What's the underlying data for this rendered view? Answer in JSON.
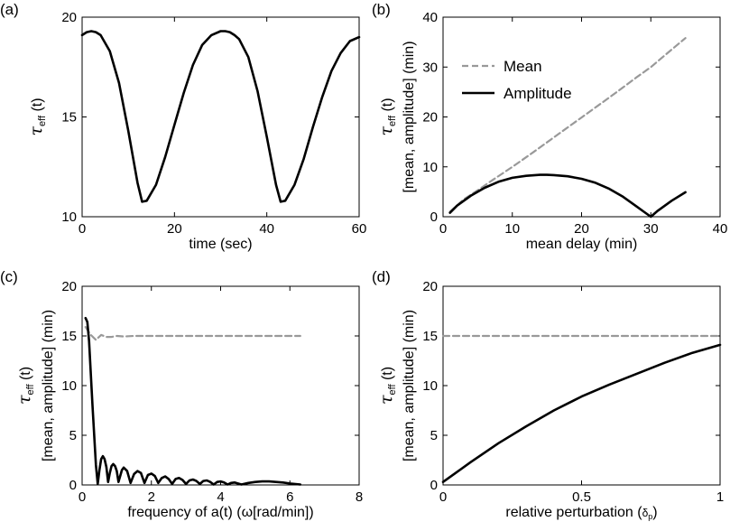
{
  "chart_data": [
    {
      "panel_label": "(a)",
      "type": "line",
      "xlabel": "time (sec)",
      "ylabel_parts": [
        "τ",
        "eff",
        " (t)"
      ],
      "xlim": [
        0,
        60
      ],
      "ylim": [
        10,
        20
      ],
      "xticks": [
        0,
        20,
        40,
        60
      ],
      "yticks": [
        10,
        15,
        20
      ],
      "series": [
        {
          "color": "#000000",
          "dash": "solid",
          "x": [
            0,
            1,
            2,
            3,
            4,
            6,
            8,
            10,
            12,
            13,
            14,
            16,
            18,
            20,
            22,
            24,
            26,
            28,
            30,
            31,
            32,
            33,
            34,
            36,
            38,
            40,
            42,
            43,
            44,
            46,
            48,
            50,
            52,
            54,
            56,
            58,
            60
          ],
          "y": [
            19.1,
            19.25,
            19.3,
            19.25,
            19.1,
            18.3,
            16.7,
            14.3,
            11.7,
            10.75,
            10.8,
            11.6,
            13.0,
            14.6,
            16.2,
            17.6,
            18.6,
            19.1,
            19.3,
            19.3,
            19.25,
            19.1,
            18.9,
            18.0,
            16.3,
            14.0,
            11.6,
            10.75,
            10.8,
            11.6,
            12.9,
            14.5,
            16.0,
            17.3,
            18.2,
            18.8,
            19.0
          ]
        }
      ]
    },
    {
      "panel_label": "(b)",
      "type": "line",
      "xlabel": "mean delay (min)",
      "ylabel_parts": [
        "τ",
        "eff",
        " (t)"
      ],
      "ylabel2": "[mean, amplitude] (min)",
      "xlim": [
        0,
        40
      ],
      "ylim": [
        0,
        40
      ],
      "xticks": [
        0,
        10,
        20,
        30,
        40
      ],
      "yticks": [
        0,
        10,
        20,
        30,
        40
      ],
      "legend_position": "upper-left",
      "series": [
        {
          "name": "Mean",
          "color": "#999999",
          "dash": "dashed",
          "x": [
            1,
            3,
            5,
            7,
            10,
            13,
            15,
            18,
            20,
            23,
            25,
            28,
            30,
            33,
            35
          ],
          "y": [
            1,
            3.5,
            5.3,
            7.2,
            10,
            12.9,
            14.9,
            17.9,
            19.9,
            22.9,
            24.9,
            28,
            30,
            33.5,
            35.8
          ]
        },
        {
          "name": "Amplitude",
          "color": "#000000",
          "dash": "solid",
          "x": [
            1,
            2,
            4,
            6,
            8,
            10,
            12,
            14,
            15,
            16,
            18,
            20,
            22,
            24,
            26,
            28,
            29,
            30,
            31,
            33,
            35
          ],
          "y": [
            0.8,
            2.2,
            4.2,
            5.8,
            7.0,
            7.8,
            8.2,
            8.4,
            8.4,
            8.35,
            8.1,
            7.6,
            6.8,
            5.6,
            4.0,
            2.0,
            1.0,
            0,
            1.2,
            3.2,
            4.9
          ]
        }
      ]
    },
    {
      "panel_label": "(c)",
      "type": "line",
      "xlabel": "frequency of a(t) (ω[rad/min])",
      "ylabel_parts": [
        "τ",
        "eff",
        " (t)"
      ],
      "ylabel2": "[mean, amplitude] (min)",
      "xlim": [
        0,
        8
      ],
      "ylim": [
        0,
        20
      ],
      "xticks": [
        0,
        2,
        4,
        6,
        8
      ],
      "yticks": [
        0,
        5,
        10,
        15,
        20
      ],
      "series": [
        {
          "name": "Mean",
          "color": "#999999",
          "dash": "dashed",
          "x": [
            0.1,
            0.25,
            0.4,
            0.55,
            0.7,
            0.85,
            1.0,
            1.2,
            1.5,
            2,
            3,
            4,
            5,
            6,
            6.3
          ],
          "y": [
            15.9,
            15.1,
            14.6,
            15.1,
            14.9,
            14.9,
            15.0,
            14.95,
            15.0,
            15.0,
            15.0,
            15.0,
            15.0,
            15.0,
            15.0
          ]
        },
        {
          "name": "Amplitude",
          "color": "#000000",
          "dash": "solid",
          "x": [
            0.1,
            0.15,
            0.2,
            0.3,
            0.4,
            0.45,
            0.5,
            0.55,
            0.6,
            0.65,
            0.7,
            0.75,
            0.8,
            0.85,
            0.9,
            0.95,
            1.0,
            1.05,
            1.1,
            1.15,
            1.2,
            1.3,
            1.4,
            1.5,
            1.6,
            1.7,
            1.8,
            1.9,
            2.0,
            2.1,
            2.2,
            2.3,
            2.4,
            2.5,
            2.6,
            2.7,
            2.8,
            2.9,
            3.0,
            3.1,
            3.2,
            3.3,
            3.4,
            3.5,
            3.6,
            3.7,
            3.8,
            3.9,
            4.0,
            4.1,
            4.2,
            4.3,
            4.4,
            4.5,
            4.6,
            4.8,
            5.0,
            5.2,
            5.4,
            5.6,
            5.8,
            6.0,
            6.3
          ],
          "y": [
            16.8,
            16.4,
            14.5,
            8.0,
            2.0,
            0.1,
            1.5,
            2.6,
            2.9,
            2.6,
            1.8,
            0.3,
            1.2,
            1.9,
            2.1,
            1.9,
            1.4,
            0.3,
            0.9,
            1.5,
            1.75,
            1.4,
            0.2,
            1.1,
            1.4,
            1.2,
            0.2,
            1.0,
            1.15,
            0.9,
            0.2,
            0.7,
            0.85,
            0.6,
            0.1,
            0.6,
            0.7,
            0.5,
            0.1,
            0.45,
            0.55,
            0.4,
            0.1,
            0.4,
            0.45,
            0.3,
            0.05,
            0.3,
            0.35,
            0.25,
            0.05,
            0.2,
            0.25,
            0.15,
            0.05,
            0.2,
            0.3,
            0.35,
            0.35,
            0.3,
            0.25,
            0.15,
            0.05
          ]
        }
      ]
    },
    {
      "panel_label": "(d)",
      "type": "line",
      "xlabel_main": "relative perturbation (",
      "xlabel_delta": "δ",
      "xlabel_sub": "p",
      "xlabel_close": ")",
      "ylabel_parts": [
        "τ",
        "eff",
        " (t)"
      ],
      "ylabel2": "[mean, amplitude] (min)",
      "xlim": [
        0,
        1
      ],
      "ylim": [
        0,
        20
      ],
      "xticks": [
        0,
        0.5,
        1
      ],
      "xticklabels": [
        "0",
        "0.5",
        "1"
      ],
      "yticks": [
        0,
        5,
        10,
        15,
        20
      ],
      "series": [
        {
          "name": "Mean",
          "color": "#999999",
          "dash": "dashed",
          "x": [
            0,
            0.25,
            0.5,
            0.75,
            1.0
          ],
          "y": [
            15,
            15,
            15,
            15,
            15
          ]
        },
        {
          "name": "Amplitude",
          "color": "#000000",
          "dash": "solid",
          "x": [
            0,
            0.05,
            0.1,
            0.2,
            0.3,
            0.4,
            0.5,
            0.6,
            0.7,
            0.8,
            0.9,
            1.0
          ],
          "y": [
            0.3,
            1.3,
            2.3,
            4.2,
            5.9,
            7.5,
            8.9,
            10.1,
            11.2,
            12.3,
            13.3,
            14.1
          ]
        }
      ]
    }
  ]
}
